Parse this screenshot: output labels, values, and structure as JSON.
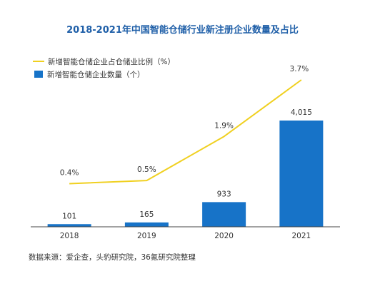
{
  "colors": {
    "bar": "#1773c8",
    "line": "#f0d020",
    "title": "#1f5fa8",
    "axis": "#444444"
  },
  "chart_data": {
    "type": "bar",
    "title": "2018-2021年中国智能仓储行业新注册企业数量及占比",
    "categories": [
      "2018",
      "2019",
      "2020",
      "2021"
    ],
    "series": [
      {
        "name": "新增智能仓储企业数量（个）",
        "type": "bar",
        "values": [
          101,
          165,
          933,
          4015
        ],
        "labels": [
          "101",
          "165",
          "933",
          "4,015"
        ]
      },
      {
        "name": "新增智能仓储企业占仓储业比例（%）",
        "type": "line",
        "values": [
          0.4,
          0.5,
          1.9,
          3.7
        ],
        "labels": [
          "0.4%",
          "0.5%",
          "1.9%",
          "3.7%"
        ]
      }
    ],
    "legend": "top-left",
    "grid": false
  },
  "source": "数据来源：爱企查，头豹研究院，36氪研究院整理"
}
